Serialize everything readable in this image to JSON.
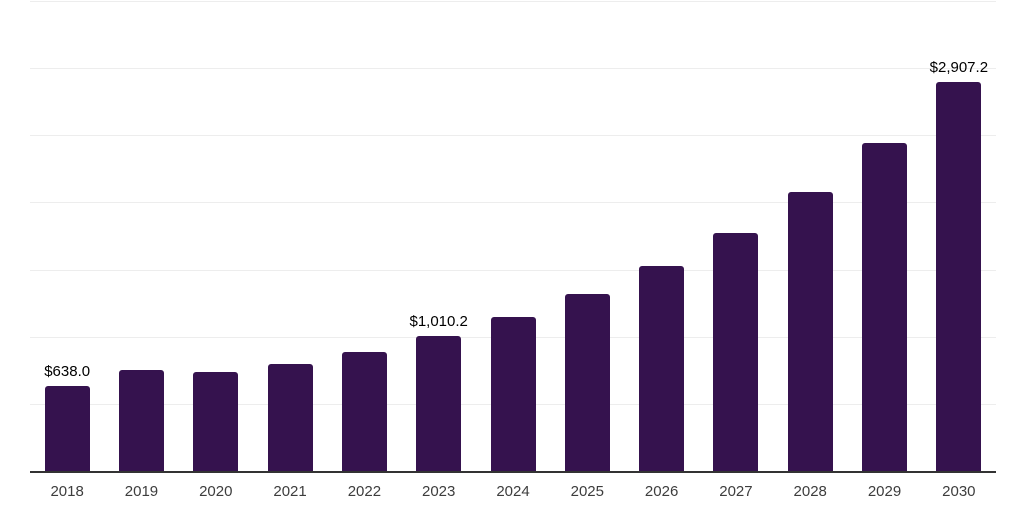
{
  "chart_data": {
    "type": "bar",
    "title": "",
    "xlabel": "",
    "ylabel": "",
    "categories": [
      "2018",
      "2019",
      "2020",
      "2021",
      "2022",
      "2023",
      "2024",
      "2025",
      "2026",
      "2027",
      "2028",
      "2029",
      "2030"
    ],
    "values": [
      638.0,
      762,
      745,
      806,
      891,
      1010.2,
      1152,
      1326,
      1534,
      1779,
      2082,
      2450,
      2907.2
    ],
    "value_labels": {
      "2018": "$638.0",
      "2023": "$1,010.2",
      "2030": "$2,907.2"
    },
    "ylim": [
      0,
      3500
    ],
    "grid_step": 500,
    "grid": true,
    "legend": false,
    "y_tick_labels_visible": false,
    "colors": {
      "bar": "#35124E",
      "gridline": "#ededed",
      "axis_line": "#333333",
      "x_tick_label": "#3d3d3d",
      "value_label": "#000000",
      "background": "#ffffff"
    }
  }
}
